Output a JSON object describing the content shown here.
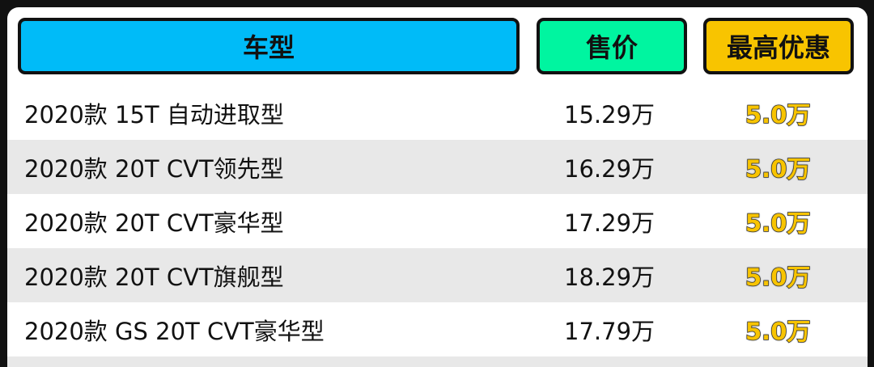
{
  "header": {
    "model": "车型",
    "price": "售价",
    "discount": "最高优惠"
  },
  "colors": {
    "model_header": "#00BBF8",
    "price_header": "#00F5A0",
    "discount_header": "#F8C400"
  },
  "rows": [
    {
      "model": "2020款 15T 自动进取型",
      "price": "15.29万",
      "discount": "5.0万"
    },
    {
      "model": "2020款 20T CVT领先型",
      "price": "16.29万",
      "discount": "5.0万"
    },
    {
      "model": "2020款 20T CVT豪华型",
      "price": "17.29万",
      "discount": "5.0万"
    },
    {
      "model": "2020款 20T CVT旗舰型",
      "price": "18.29万",
      "discount": "5.0万"
    },
    {
      "model": "2020款 GS 20T CVT豪华型",
      "price": "17.79万",
      "discount": "5.0万"
    }
  ]
}
